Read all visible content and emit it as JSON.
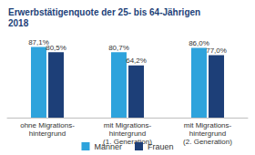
{
  "chart_data": {
    "type": "bar",
    "title": "Erwerbstätigenquote der 25- bis 64-Jährigen 2018",
    "categories": [
      "ohne Migrations-\nhintergrund",
      "mit Migrations-\nhintergrund\n(1. Generation)",
      "mit Migrations-\nhintergrund\n(2. Generation)"
    ],
    "series": [
      {
        "name": "Männer",
        "color": "#2ea3dc",
        "values": [
          87.1,
          80.7,
          86.0
        ],
        "value_labels": [
          "87,1%",
          "80,7%",
          "86,0%"
        ]
      },
      {
        "name": "Frauen",
        "color": "#1d3f78",
        "values": [
          80.5,
          64.2,
          77.0
        ],
        "value_labels": [
          "80,5%",
          "64,2%",
          "77,0%"
        ]
      }
    ],
    "ylim": [
      0,
      100
    ],
    "grid": false,
    "legend": "bottom",
    "data_labels": true,
    "tick_labels": "x"
  }
}
